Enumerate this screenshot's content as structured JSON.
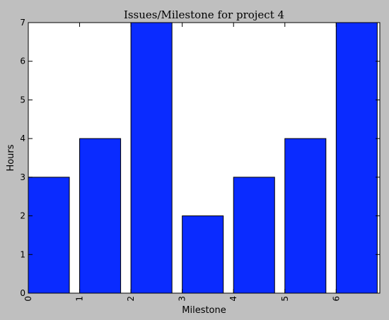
{
  "chart_data": {
    "type": "bar",
    "title": "Issues/Milestone for project 4",
    "xlabel": "Milestone",
    "ylabel": "Hours",
    "x_ticks": [
      "0",
      "1",
      "2",
      "3",
      "4",
      "5",
      "6"
    ],
    "y_ticks": [
      "0",
      "1",
      "2",
      "3",
      "4",
      "5",
      "6",
      "7"
    ],
    "values": [
      3,
      4,
      7,
      2,
      3,
      4,
      7
    ],
    "ylim": [
      0,
      7
    ],
    "grid": false,
    "bar_color": "#0a2bff",
    "background_color": "#bfbfbf",
    "plot_background": "#ffffff"
  }
}
